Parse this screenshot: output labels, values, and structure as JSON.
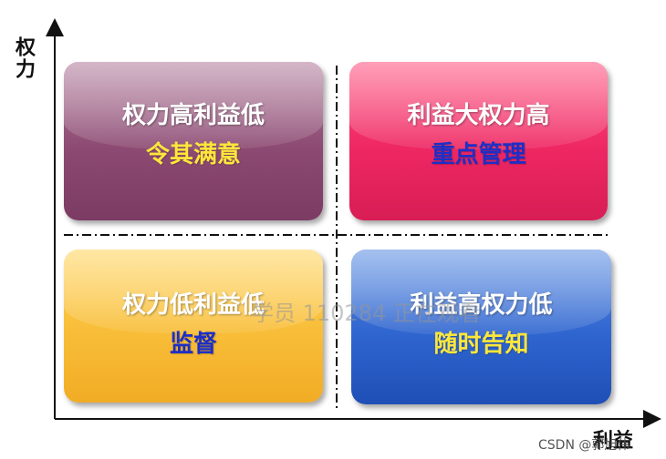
{
  "axes": {
    "y_label": "权力",
    "x_label": "利益"
  },
  "quadrants": {
    "top_left": {
      "title": "权力高利益低",
      "strategy": "令其满意"
    },
    "top_right": {
      "title": "利益大权力高",
      "strategy": "重点管理"
    },
    "bottom_left": {
      "title": "权力低利益低",
      "strategy": "监督"
    },
    "bottom_right": {
      "title": "利益高权力低",
      "strategy": "随时告知"
    }
  },
  "watermark": "学员 110284 正在观看",
  "credit": "CSDN @郭旭伟"
}
